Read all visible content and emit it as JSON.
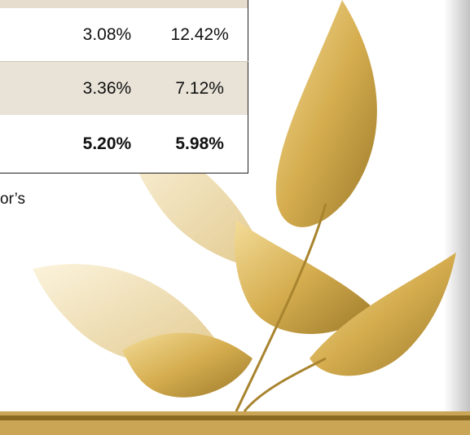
{
  "table": {
    "rows": [
      [
        "3.08%",
        "12.42%"
      ],
      [
        "3.36%",
        "7.12%"
      ],
      [
        "5.20%",
        "5.98%"
      ]
    ]
  },
  "text_fragment": "or’s"
}
